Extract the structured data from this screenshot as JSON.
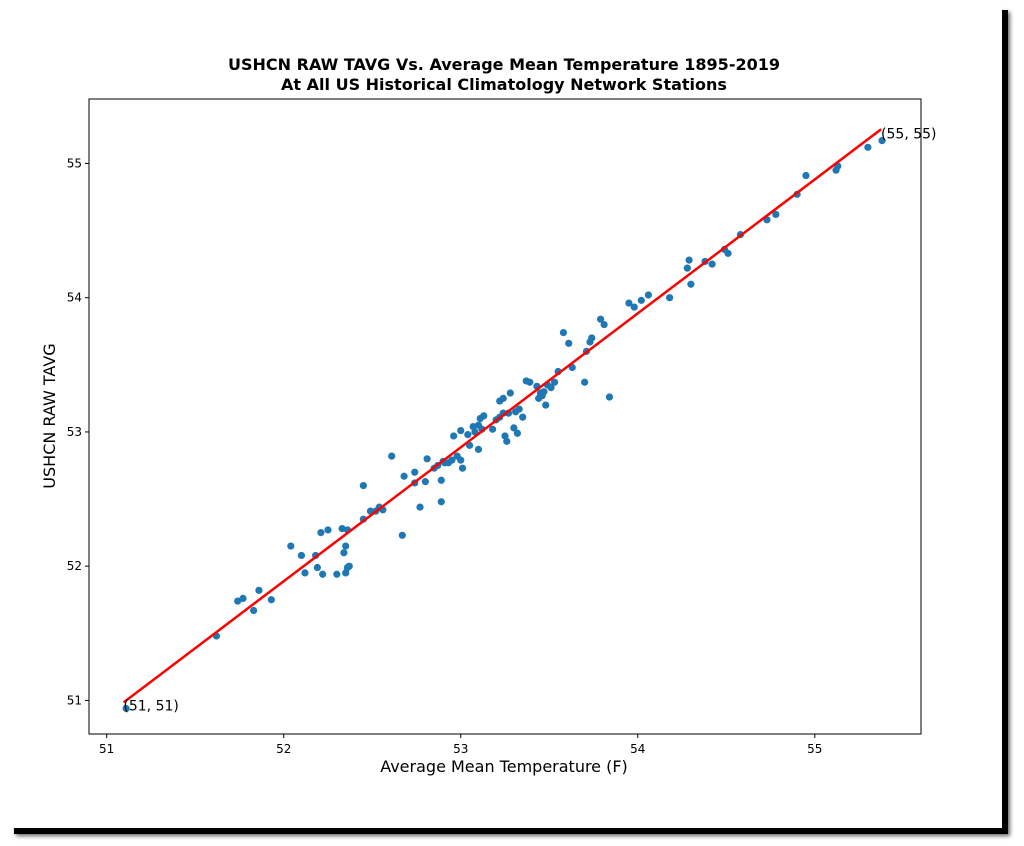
{
  "chart_data": {
    "type": "scatter",
    "title": "USHCN RAW TAVG Vs. Average Mean Temperature 1895-2019",
    "subtitle": "At All US Historical Climatology Network Stations",
    "xlabel": "Average Mean Temperature (F)",
    "ylabel": "USHCN RAW TAVG",
    "xlim": [
      50.9,
      55.6
    ],
    "ylim": [
      50.75,
      55.48
    ],
    "xticks": [
      51,
      52,
      53,
      54,
      55
    ],
    "yticks": [
      51,
      52,
      53,
      54,
      55
    ],
    "grid": false,
    "point_color": "#1f77b4",
    "line_color": "#ff0000",
    "fit_line": {
      "x": [
        51.1,
        55.37
      ],
      "y": [
        50.99,
        55.25
      ]
    },
    "annotations": [
      {
        "text": "(51, 51)",
        "x": 51.1,
        "y": 50.94
      },
      {
        "text": "(55, 55)",
        "x": 55.38,
        "y": 55.2
      }
    ],
    "points": [
      [
        51.11,
        50.94
      ],
      [
        51.62,
        51.48
      ],
      [
        51.74,
        51.74
      ],
      [
        51.77,
        51.76
      ],
      [
        51.83,
        51.67
      ],
      [
        51.86,
        51.82
      ],
      [
        51.93,
        51.75
      ],
      [
        52.04,
        52.15
      ],
      [
        52.1,
        52.08
      ],
      [
        52.12,
        51.95
      ],
      [
        52.18,
        52.08
      ],
      [
        52.19,
        51.99
      ],
      [
        52.21,
        52.25
      ],
      [
        52.22,
        51.94
      ],
      [
        52.25,
        52.27
      ],
      [
        52.3,
        51.94
      ],
      [
        52.33,
        52.28
      ],
      [
        52.34,
        52.1
      ],
      [
        52.35,
        52.15
      ],
      [
        52.36,
        52.27
      ],
      [
        52.36,
        51.99
      ],
      [
        52.37,
        52.0
      ],
      [
        52.35,
        51.95
      ],
      [
        52.45,
        52.35
      ],
      [
        52.45,
        52.6
      ],
      [
        52.49,
        52.41
      ],
      [
        52.52,
        52.41
      ],
      [
        52.54,
        52.44
      ],
      [
        52.56,
        52.42
      ],
      [
        52.61,
        52.82
      ],
      [
        52.67,
        52.23
      ],
      [
        52.68,
        52.67
      ],
      [
        52.74,
        52.62
      ],
      [
        52.74,
        52.7
      ],
      [
        52.77,
        52.44
      ],
      [
        52.8,
        52.63
      ],
      [
        52.81,
        52.8
      ],
      [
        52.85,
        52.73
      ],
      [
        52.87,
        52.75
      ],
      [
        52.89,
        52.64
      ],
      [
        52.89,
        52.48
      ],
      [
        52.9,
        52.78
      ],
      [
        52.91,
        52.77
      ],
      [
        52.93,
        52.77
      ],
      [
        52.95,
        52.79
      ],
      [
        52.96,
        52.97
      ],
      [
        52.98,
        52.82
      ],
      [
        53.0,
        53.01
      ],
      [
        53.0,
        52.79
      ],
      [
        53.01,
        52.73
      ],
      [
        53.04,
        52.98
      ],
      [
        53.05,
        52.9
      ],
      [
        53.07,
        53.04
      ],
      [
        53.08,
        53.0
      ],
      [
        53.1,
        52.87
      ],
      [
        53.1,
        53.05
      ],
      [
        53.11,
        53.1
      ],
      [
        53.12,
        53.02
      ],
      [
        53.13,
        53.12
      ],
      [
        53.18,
        53.02
      ],
      [
        53.2,
        53.09
      ],
      [
        53.22,
        53.11
      ],
      [
        53.22,
        53.23
      ],
      [
        53.24,
        53.25
      ],
      [
        53.24,
        53.14
      ],
      [
        53.25,
        52.97
      ],
      [
        53.26,
        52.93
      ],
      [
        53.27,
        53.14
      ],
      [
        53.28,
        53.29
      ],
      [
        53.3,
        53.03
      ],
      [
        53.31,
        53.15
      ],
      [
        53.32,
        52.99
      ],
      [
        53.33,
        53.17
      ],
      [
        53.35,
        53.11
      ],
      [
        53.37,
        53.38
      ],
      [
        53.39,
        53.37
      ],
      [
        53.43,
        53.34
      ],
      [
        53.44,
        53.25
      ],
      [
        53.45,
        53.29
      ],
      [
        53.46,
        53.27
      ],
      [
        53.47,
        53.3
      ],
      [
        53.48,
        53.2
      ],
      [
        53.49,
        53.35
      ],
      [
        53.51,
        53.33
      ],
      [
        53.53,
        53.37
      ],
      [
        53.55,
        53.45
      ],
      [
        53.58,
        53.74
      ],
      [
        53.61,
        53.66
      ],
      [
        53.63,
        53.48
      ],
      [
        53.7,
        53.37
      ],
      [
        53.71,
        53.6
      ],
      [
        53.73,
        53.67
      ],
      [
        53.74,
        53.7
      ],
      [
        53.79,
        53.84
      ],
      [
        53.81,
        53.8
      ],
      [
        53.84,
        53.26
      ],
      [
        53.95,
        53.96
      ],
      [
        53.98,
        53.93
      ],
      [
        54.02,
        53.98
      ],
      [
        54.06,
        54.02
      ],
      [
        54.18,
        54.0
      ],
      [
        54.28,
        54.22
      ],
      [
        54.29,
        54.28
      ],
      [
        54.3,
        54.1
      ],
      [
        54.38,
        54.27
      ],
      [
        54.42,
        54.25
      ],
      [
        54.49,
        54.36
      ],
      [
        54.51,
        54.33
      ],
      [
        54.58,
        54.47
      ],
      [
        54.73,
        54.58
      ],
      [
        54.78,
        54.62
      ],
      [
        54.9,
        54.77
      ],
      [
        54.95,
        54.91
      ],
      [
        55.12,
        54.95
      ],
      [
        55.13,
        54.98
      ],
      [
        55.3,
        55.12
      ],
      [
        55.38,
        55.17
      ]
    ]
  }
}
